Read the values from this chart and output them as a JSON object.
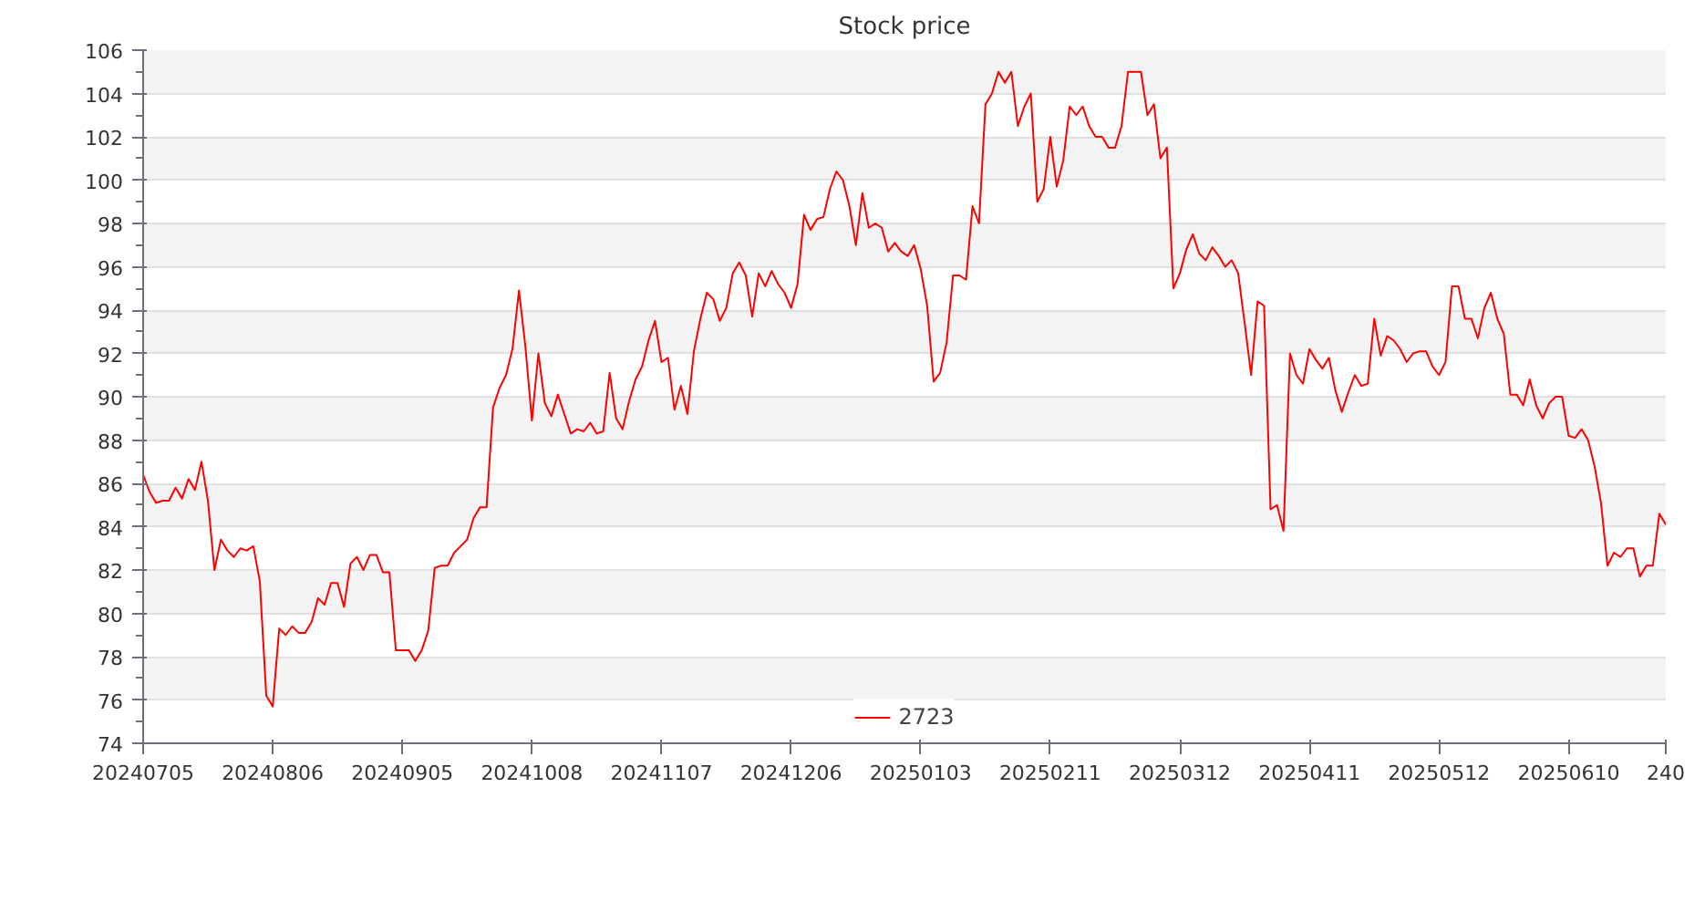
{
  "chart_data": {
    "type": "line",
    "title": "Stock price",
    "categories": [
      "20240705",
      null,
      null,
      null,
      null,
      null,
      null,
      null,
      null,
      null,
      null,
      null,
      null,
      null,
      null,
      null,
      null,
      null,
      null,
      null,
      "20240806",
      null,
      null,
      null,
      null,
      null,
      null,
      null,
      null,
      null,
      null,
      null,
      null,
      null,
      null,
      null,
      null,
      null,
      null,
      null,
      "20240905",
      null,
      null,
      null,
      null,
      null,
      null,
      null,
      null,
      null,
      null,
      null,
      null,
      null,
      null,
      null,
      null,
      null,
      null,
      null,
      "20241008",
      null,
      null,
      null,
      null,
      null,
      null,
      null,
      null,
      null,
      null,
      null,
      null,
      null,
      null,
      null,
      null,
      null,
      null,
      null,
      "20241107",
      null,
      null,
      null,
      null,
      null,
      null,
      null,
      null,
      null,
      null,
      null,
      null,
      null,
      null,
      null,
      null,
      null,
      null,
      null,
      "20241206",
      null,
      null,
      null,
      null,
      null,
      null,
      null,
      null,
      null,
      null,
      null,
      null,
      null,
      null,
      null,
      null,
      null,
      null,
      null,
      "20250103",
      null,
      null,
      null,
      null,
      null,
      null,
      null,
      null,
      null,
      null,
      null,
      null,
      null,
      null,
      null,
      null,
      null,
      null,
      null,
      "20250211",
      null,
      null,
      null,
      null,
      null,
      null,
      null,
      null,
      null,
      null,
      null,
      null,
      null,
      null,
      null,
      null,
      null,
      null,
      null,
      "20250312",
      null,
      null,
      null,
      null,
      null,
      null,
      null,
      null,
      null,
      null,
      null,
      null,
      null,
      null,
      null,
      null,
      null,
      null,
      null,
      "20250411",
      null,
      null,
      null,
      null,
      null,
      null,
      null,
      null,
      null,
      null,
      null,
      null,
      null,
      null,
      null,
      null,
      null,
      null,
      null,
      "20250512",
      null,
      null,
      null,
      null,
      null,
      null,
      null,
      null,
      null,
      null,
      null,
      null,
      null,
      null,
      null,
      null,
      null,
      null,
      null,
      "20250610",
      null,
      null,
      null,
      null,
      null,
      null,
      null,
      null,
      null,
      null,
      null,
      null,
      null,
      null,
      "240"
    ],
    "series": [
      {
        "name": "2723",
        "color": "#ff0000",
        "values": [
          86.4,
          85.6,
          85.1,
          85.2,
          85.2,
          85.8,
          85.3,
          86.2,
          85.7,
          87.0,
          85.2,
          82.0,
          83.4,
          82.9,
          82.6,
          83.0,
          82.9,
          83.1,
          81.5,
          76.2,
          75.7,
          79.3,
          79.0,
          79.4,
          79.1,
          79.1,
          79.6,
          80.7,
          80.4,
          81.4,
          81.4,
          80.3,
          82.3,
          82.6,
          82.0,
          82.7,
          82.7,
          81.9,
          81.9,
          78.3,
          78.3,
          78.3,
          77.8,
          78.3,
          79.2,
          82.1,
          82.2,
          82.2,
          82.8,
          83.1,
          83.4,
          84.4,
          84.9,
          84.9,
          89.5,
          90.4,
          91.0,
          92.2,
          94.9,
          92.3,
          88.9,
          92.0,
          89.7,
          89.1,
          90.1,
          89.2,
          88.3,
          88.5,
          88.4,
          88.8,
          88.3,
          88.4,
          91.1,
          89.0,
          88.5,
          89.8,
          90.8,
          91.4,
          92.6,
          93.5,
          91.6,
          91.8,
          89.4,
          90.5,
          89.2,
          92.1,
          93.6,
          94.8,
          94.5,
          93.5,
          94.1,
          95.7,
          96.2,
          95.6,
          93.7,
          95.7,
          95.1,
          95.8,
          95.2,
          94.8,
          94.1,
          95.2,
          98.4,
          97.7,
          98.2,
          98.3,
          99.6,
          100.4,
          100.0,
          98.8,
          97.0,
          99.4,
          97.8,
          98.0,
          97.8,
          96.7,
          97.1,
          96.7,
          96.5,
          97.0,
          95.9,
          94.2,
          90.7,
          91.1,
          92.5,
          95.6,
          95.6,
          95.4,
          98.8,
          98.0,
          103.5,
          104.0,
          105.0,
          104.5,
          105.0,
          102.5,
          103.4,
          104.0,
          99.0,
          99.6,
          102.0,
          99.7,
          100.9,
          103.4,
          103.0,
          103.4,
          102.5,
          102.0,
          102.0,
          101.5,
          101.5,
          102.5,
          105.0,
          105.0,
          105.0,
          103.0,
          103.5,
          101.0,
          101.5,
          95.0,
          95.7,
          96.8,
          97.5,
          96.6,
          96.3,
          96.9,
          96.5,
          96.0,
          96.3,
          95.7,
          93.4,
          91.0,
          94.4,
          94.2,
          84.8,
          85.0,
          83.8,
          92.0,
          91.0,
          90.6,
          92.2,
          91.7,
          91.3,
          91.8,
          90.3,
          89.3,
          90.2,
          91.0,
          90.5,
          90.6,
          93.6,
          91.9,
          92.8,
          92.6,
          92.2,
          91.6,
          92.0,
          92.1,
          92.1,
          91.4,
          91.0,
          91.6,
          95.1,
          95.1,
          93.6,
          93.6,
          92.7,
          94.1,
          94.8,
          93.6,
          92.9,
          90.1,
          90.1,
          89.6,
          90.8,
          89.6,
          89.0,
          89.7,
          90.0,
          90.0,
          88.2,
          88.1,
          88.5,
          88.0,
          86.8,
          85.1,
          82.2,
          82.8,
          82.6,
          83.0,
          83.0,
          81.7,
          82.2,
          82.2,
          84.6,
          84.1
        ]
      }
    ],
    "ylim": [
      74,
      106
    ],
    "yticks": [
      74,
      76,
      78,
      80,
      82,
      84,
      86,
      88,
      90,
      92,
      94,
      96,
      98,
      100,
      102,
      104,
      106
    ],
    "grid": "y",
    "legend": "bottom",
    "marker": "none",
    "line_style": "solid"
  }
}
